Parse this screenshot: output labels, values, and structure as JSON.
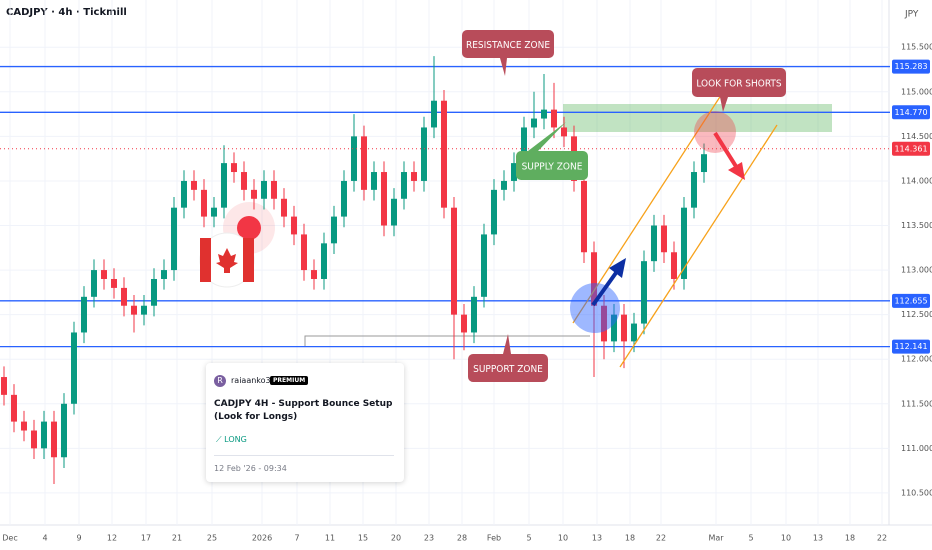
{
  "header": {
    "symbol": "CADJPY · 4h · Tickmill",
    "currency": "JPY"
  },
  "chart_data": {
    "type": "candlestick",
    "up_color": "#089981",
    "down_color": "#f23645",
    "open": [
      111.8,
      111.6,
      111.3,
      111.2,
      111.0,
      111.3,
      110.9,
      111.5,
      112.3,
      112.7,
      113.0,
      112.9,
      112.8,
      112.6,
      112.5,
      112.6,
      112.9,
      113.0,
      113.7,
      114.0,
      113.9,
      113.6,
      113.7,
      114.2,
      114.1,
      113.9,
      113.8,
      114.0,
      113.8,
      113.6,
      113.4,
      113.0,
      112.9,
      113.3,
      113.6,
      114.0,
      114.5,
      113.9,
      114.1,
      113.5,
      113.8,
      114.1,
      114.0,
      114.6,
      114.9,
      113.7,
      112.5,
      112.3,
      112.7,
      113.4,
      113.9,
      114.0,
      114.2,
      114.6,
      114.7,
      114.8,
      114.6,
      114.5,
      114.0,
      113.2,
      112.6,
      112.2,
      112.5,
      112.2,
      112.4,
      113.1,
      113.5,
      113.2,
      112.9,
      113.7,
      114.1
    ],
    "high": [
      111.92,
      111.72,
      111.42,
      111.32,
      111.42,
      111.42,
      111.62,
      112.42,
      112.82,
      113.12,
      113.12,
      113.02,
      112.92,
      112.72,
      112.72,
      113.02,
      113.12,
      113.82,
      114.12,
      114.12,
      114.02,
      113.82,
      114.4,
      114.32,
      114.22,
      114.02,
      114.12,
      114.12,
      113.92,
      113.72,
      113.52,
      113.12,
      113.42,
      113.72,
      114.12,
      114.75,
      114.62,
      114.22,
      114.22,
      113.92,
      114.22,
      114.22,
      114.72,
      115.4,
      115.02,
      113.82,
      112.62,
      112.82,
      113.52,
      114.02,
      114.12,
      114.32,
      114.72,
      115.0,
      115.2,
      115.1,
      114.72,
      114.62,
      114.12,
      113.32,
      112.72,
      112.62,
      112.62,
      112.52,
      113.22,
      113.62,
      113.62,
      113.32,
      113.82,
      114.22,
      114.42
    ],
    "low": [
      111.48,
      111.18,
      111.08,
      110.88,
      110.88,
      110.6,
      110.78,
      111.38,
      112.18,
      112.58,
      112.78,
      112.68,
      112.48,
      112.3,
      112.38,
      112.48,
      112.78,
      112.88,
      113.58,
      113.78,
      113.48,
      113.48,
      113.58,
      113.98,
      113.78,
      113.68,
      113.68,
      113.68,
      113.48,
      113.28,
      112.88,
      112.78,
      112.78,
      113.18,
      113.48,
      113.88,
      113.78,
      113.78,
      113.38,
      113.38,
      113.68,
      113.88,
      113.88,
      114.48,
      113.58,
      112.0,
      112.1,
      112.18,
      112.58,
      113.28,
      113.78,
      113.88,
      114.08,
      114.48,
      114.58,
      114.48,
      114.38,
      113.88,
      113.08,
      111.8,
      112.0,
      112.08,
      111.9,
      112.08,
      112.28,
      112.98,
      113.08,
      112.78,
      112.78,
      113.58,
      113.98
    ],
    "close": [
      111.6,
      111.3,
      111.2,
      111.0,
      111.3,
      110.9,
      111.5,
      112.3,
      112.7,
      113.0,
      112.9,
      112.8,
      112.6,
      112.5,
      112.6,
      112.9,
      113.0,
      113.7,
      114.0,
      113.9,
      113.6,
      113.7,
      114.2,
      114.1,
      113.9,
      113.8,
      114.0,
      113.8,
      113.6,
      113.4,
      113.0,
      112.9,
      113.3,
      113.6,
      114.0,
      114.5,
      113.9,
      114.1,
      113.5,
      113.8,
      114.1,
      114.0,
      114.6,
      114.9,
      113.7,
      112.5,
      112.3,
      112.7,
      113.4,
      113.9,
      114.0,
      114.2,
      114.6,
      114.7,
      114.8,
      114.6,
      114.5,
      114.0,
      113.2,
      112.6,
      112.2,
      112.5,
      112.2,
      112.4,
      113.1,
      113.5,
      113.2,
      112.9,
      113.7,
      114.1,
      114.3
    ],
    "xlim": [
      -0.4,
      88.6
    ],
    "xticks": [
      {
        "value": 0.6,
        "label": "Dec"
      },
      {
        "value": 4.1,
        "label": "4"
      },
      {
        "value": 7.5,
        "label": "9"
      },
      {
        "value": 10.8,
        "label": "12"
      },
      {
        "value": 14.2,
        "label": "17"
      },
      {
        "value": 17.3,
        "label": "21"
      },
      {
        "value": 20.8,
        "label": "25"
      },
      {
        "value": 25.8,
        "label": "2026"
      },
      {
        "value": 29.3,
        "label": "7"
      },
      {
        "value": 32.6,
        "label": "11"
      },
      {
        "value": 35.9,
        "label": "15"
      },
      {
        "value": 39.2,
        "label": "20"
      },
      {
        "value": 42.5,
        "label": "23"
      },
      {
        "value": 45.8,
        "label": "28"
      },
      {
        "value": 49,
        "label": "Feb"
      },
      {
        "value": 52.5,
        "label": "5"
      },
      {
        "value": 55.9,
        "label": "10"
      },
      {
        "value": 59.3,
        "label": "13"
      },
      {
        "value": 62.6,
        "label": "18"
      },
      {
        "value": 65.7,
        "label": "22"
      },
      {
        "value": 71.2,
        "label": "Mar"
      },
      {
        "value": 74.7,
        "label": "5"
      },
      {
        "value": 78.2,
        "label": "10"
      },
      {
        "value": 81.4,
        "label": "13"
      },
      {
        "value": 84.6,
        "label": "18"
      },
      {
        "value": 87.8,
        "label": "22"
      }
    ],
    "ylim": [
      110.14,
      116.03
    ],
    "yticks": [
      {
        "value": 110.5,
        "label": "110.500"
      },
      {
        "value": 111,
        "label": "111.000"
      },
      {
        "value": 111.5,
        "label": "111.500"
      },
      {
        "value": 112,
        "label": "112.000"
      },
      {
        "value": 112.5,
        "label": "112.500"
      },
      {
        "value": 113,
        "label": "113.000"
      },
      {
        "value": 113.5,
        "label": "113.500"
      },
      {
        "value": 114,
        "label": "114.000"
      },
      {
        "value": 114.5,
        "label": "114.500"
      },
      {
        "value": 115,
        "label": "115.000"
      },
      {
        "value": 115.5,
        "label": "115.500"
      }
    ],
    "levels": [
      {
        "value": 115.283,
        "color": "#2962ff"
      },
      {
        "value": 114.77,
        "label": "114.770",
        "color": "#2962ff"
      },
      {
        "value": 112.655,
        "color": "#2962ff"
      },
      {
        "value": 112.141,
        "color": "#2962ff"
      }
    ],
    "last_price": {
      "value": 114.361,
      "color": "#f23645"
    },
    "annotations": [
      "RESISTANCE ZONE",
      "SUPPORT ZONE",
      "LOOK FOR SHORTS",
      "SUPPLY ZONE"
    ]
  },
  "idea_card": {
    "avatar": "R",
    "author": "raiaanko39",
    "badge": "PREMIUM",
    "title": "CADJPY 4H - Support Bounce Setup (Look for Longs)",
    "direction": "LONG",
    "date": "12 Feb '26 - 09:34"
  }
}
